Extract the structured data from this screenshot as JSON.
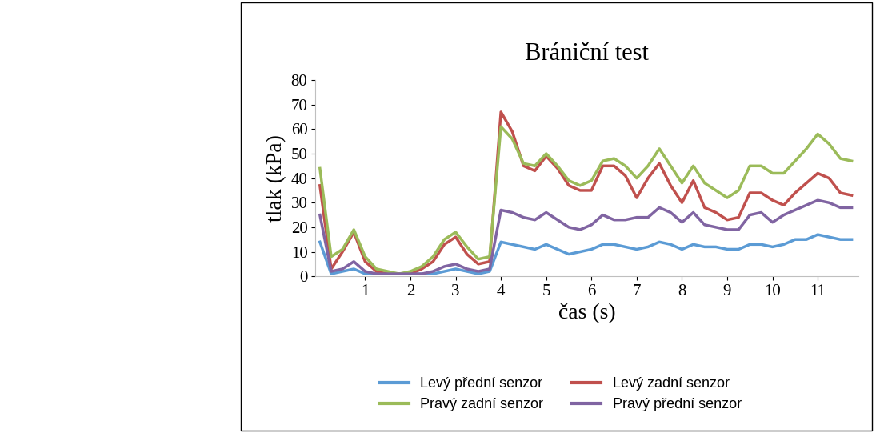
{
  "chart_data": {
    "type": "line",
    "title": "Brániční test",
    "x_label": "čas (s)",
    "y_label": "tlak (kPa)",
    "x": [
      0,
      0.25,
      0.5,
      0.75,
      1,
      1.25,
      1.5,
      1.75,
      2,
      2.25,
      2.5,
      2.75,
      3,
      3.25,
      3.5,
      3.75,
      4,
      4.25,
      4.5,
      4.75,
      5,
      5.25,
      5.5,
      5.75,
      6,
      6.25,
      6.5,
      6.75,
      7,
      7.25,
      7.5,
      7.75,
      8,
      8.25,
      8.5,
      8.75,
      9,
      9.25,
      9.5,
      9.75,
      10,
      10.25,
      10.5,
      10.75,
      11,
      11.25,
      11.5,
      11.75
    ],
    "xlim": [
      -0.1,
      11.9
    ],
    "xticks": [
      1,
      2,
      3,
      4,
      5,
      6,
      7,
      8,
      9,
      10,
      11
    ],
    "ylim": [
      0,
      80
    ],
    "yticks": [
      0,
      10,
      20,
      30,
      40,
      50,
      60,
      70,
      80
    ],
    "grid": false,
    "legend": "lower center",
    "series": [
      {
        "name": "Levý přední senzor",
        "color": "#5B9BD5",
        "values": [
          14,
          1,
          2,
          3,
          1,
          1,
          1,
          1,
          1,
          1,
          1,
          2,
          3,
          2,
          1,
          2,
          14,
          13,
          12,
          11,
          13,
          11,
          9,
          10,
          11,
          13,
          13,
          12,
          11,
          12,
          14,
          13,
          11,
          13,
          12,
          12,
          11,
          11,
          13,
          13,
          12,
          13,
          15,
          15,
          17,
          16,
          15,
          15
        ]
      },
      {
        "name": "Levý zadní senzor",
        "color": "#C0504D",
        "values": [
          37,
          3,
          10,
          18,
          6,
          2,
          1,
          1,
          1,
          3,
          6,
          13,
          16,
          9,
          5,
          6,
          67,
          59,
          45,
          43,
          49,
          44,
          37,
          35,
          35,
          45,
          45,
          41,
          32,
          40,
          46,
          37,
          30,
          39,
          28,
          26,
          23,
          24,
          34,
          34,
          31,
          29,
          34,
          38,
          42,
          40,
          34,
          33
        ]
      },
      {
        "name": "Pravý zadní senzor",
        "color": "#9BBB59",
        "values": [
          44,
          8,
          11,
          19,
          8,
          3,
          2,
          1,
          2,
          4,
          8,
          15,
          18,
          12,
          7,
          8,
          61,
          56,
          46,
          45,
          50,
          45,
          39,
          37,
          39,
          47,
          48,
          45,
          40,
          45,
          52,
          45,
          38,
          45,
          38,
          35,
          32,
          35,
          45,
          45,
          42,
          42,
          47,
          52,
          58,
          54,
          48,
          47
        ]
      },
      {
        "name": "Pravý přední senzor",
        "color": "#8064A2",
        "values": [
          25,
          2,
          3,
          6,
          2,
          1,
          1,
          1,
          1,
          1,
          2,
          4,
          5,
          3,
          2,
          3,
          27,
          26,
          24,
          23,
          26,
          23,
          20,
          19,
          21,
          25,
          23,
          23,
          24,
          24,
          28,
          26,
          22,
          26,
          21,
          20,
          19,
          19,
          25,
          26,
          22,
          25,
          27,
          29,
          31,
          30,
          28,
          28
        ]
      }
    ]
  }
}
